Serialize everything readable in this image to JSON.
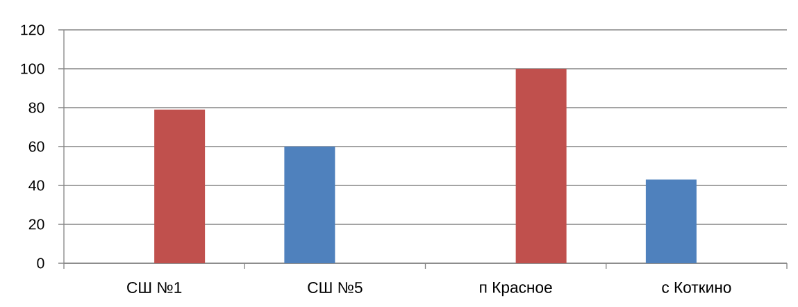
{
  "chart_data": {
    "type": "bar",
    "categories": [
      "СШ №1",
      "СШ №5",
      "п Красное",
      "с Коткино"
    ],
    "series": [
      {
        "color": "#4f81bd",
        "values": [
          null,
          60,
          null,
          43
        ]
      },
      {
        "color": "#c0504d",
        "values": [
          79,
          null,
          100,
          null
        ]
      }
    ],
    "ylim": [
      0,
      120
    ],
    "yticks": [
      0,
      20,
      40,
      60,
      80,
      100,
      120
    ],
    "grid": "y"
  }
}
